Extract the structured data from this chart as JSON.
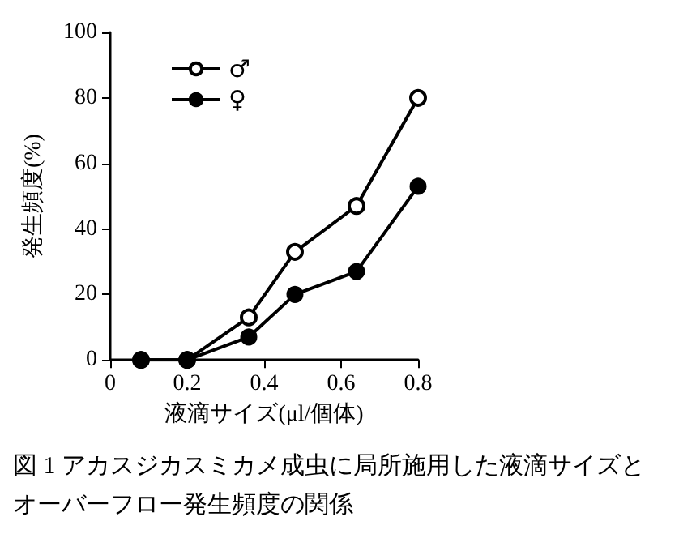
{
  "chart_data": {
    "type": "line",
    "xlabel": "液滴サイズ(μl/個体)",
    "ylabel": "発生頻度(%)",
    "x": [
      0.08,
      0.2,
      0.36,
      0.48,
      0.64,
      0.8
    ],
    "series": [
      {
        "name": "♂",
        "color": "#000000",
        "values": [
          0,
          0,
          13,
          33,
          47,
          80
        ]
      },
      {
        "name": "♀",
        "color": "#000000",
        "values": [
          0,
          0,
          7,
          20,
          27,
          53
        ]
      }
    ],
    "xlim": [
      0,
      0.8
    ],
    "xticks": [
      0,
      0.2,
      0.4,
      0.6,
      0.8
    ],
    "ylim": [
      0,
      100
    ],
    "yticks": [
      0,
      20,
      40,
      60,
      80,
      100
    ],
    "grid": false,
    "legend": "top left",
    "marker": "circle",
    "line_style": "solid",
    "annotations": [
      "図 1  アカスジカスミカメ成虫に局所施用した液滴サイズとオーバーフロー発生頻度の関係"
    ]
  }
}
